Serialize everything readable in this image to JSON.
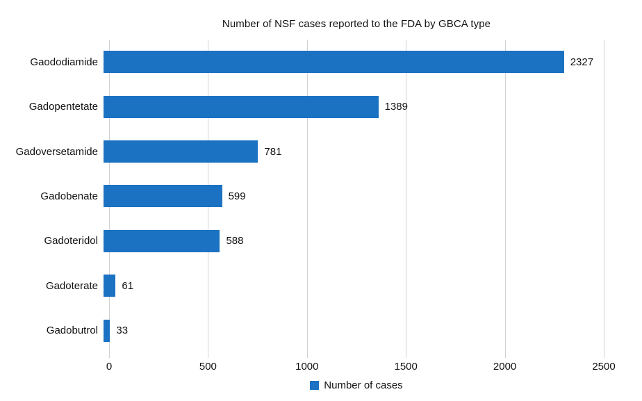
{
  "title": "Number of NSF cases reported to the FDA by GBCA type",
  "legend": {
    "label": "Number of cases"
  },
  "colors": {
    "bar": "#1c72c2",
    "grid": "#d2d2d2",
    "text": "#111111"
  },
  "chart_data": {
    "type": "bar",
    "orientation": "horizontal",
    "title": "Number of NSF cases reported to the FDA by GBCA type",
    "categories": [
      "Gaododiamide",
      "Gadopentetate",
      "Gadoversetamide",
      "Gadobenate",
      "Gadoteridol",
      "Gadoterate",
      "Gadobutrol"
    ],
    "values": [
      2327,
      1389,
      781,
      599,
      588,
      61,
      33
    ],
    "series_name": "Number of cases",
    "xlabel": "",
    "ylabel": "",
    "xlim": [
      0,
      2500
    ],
    "xticks": [
      "0",
      "500",
      "1000",
      "1500",
      "2000",
      "2500"
    ],
    "grid": true,
    "data_labels": true,
    "legend_position": "bottom"
  }
}
